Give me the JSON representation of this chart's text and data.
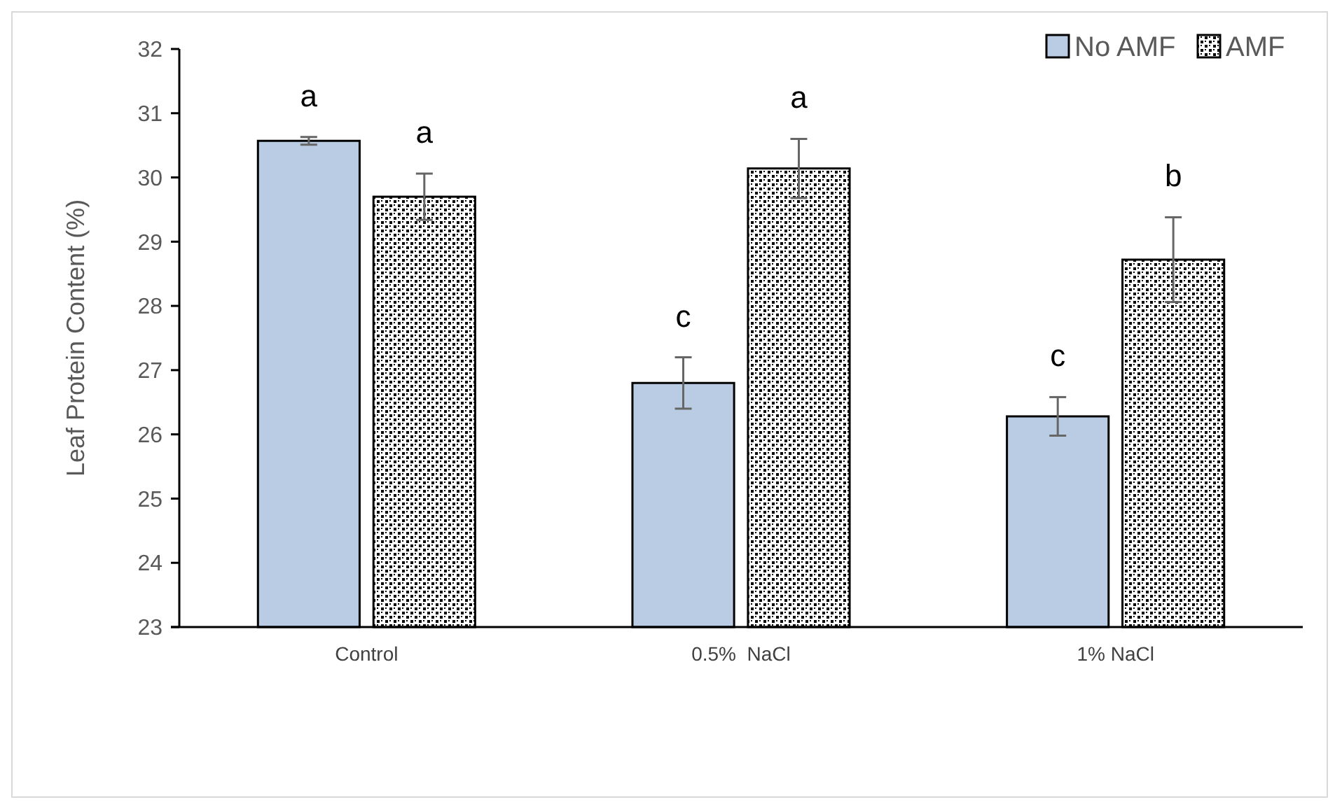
{
  "chart_data": {
    "type": "bar",
    "ylabel": "Leaf Protein Content (%)",
    "categories": [
      "Control",
      "0.5%  NaCl",
      "1% NaCl"
    ],
    "series": [
      {
        "name": "No AMF",
        "color": "#b9cce4",
        "values": [
          30.57,
          26.8,
          26.28
        ],
        "errors": [
          0.06,
          0.4,
          0.3
        ]
      },
      {
        "name": "AMF",
        "color": "#000000",
        "values": [
          29.7,
          30.14,
          28.72
        ],
        "errors": [
          0.36,
          0.46,
          0.66
        ]
      }
    ],
    "ylim": [
      23,
      32
    ],
    "yticks": [
      23,
      24,
      25,
      26,
      27,
      28,
      29,
      30,
      31,
      32
    ],
    "legend": "top right",
    "grid": false,
    "annotations": [
      "a",
      "a",
      "c",
      "a",
      "c",
      "b"
    ]
  }
}
